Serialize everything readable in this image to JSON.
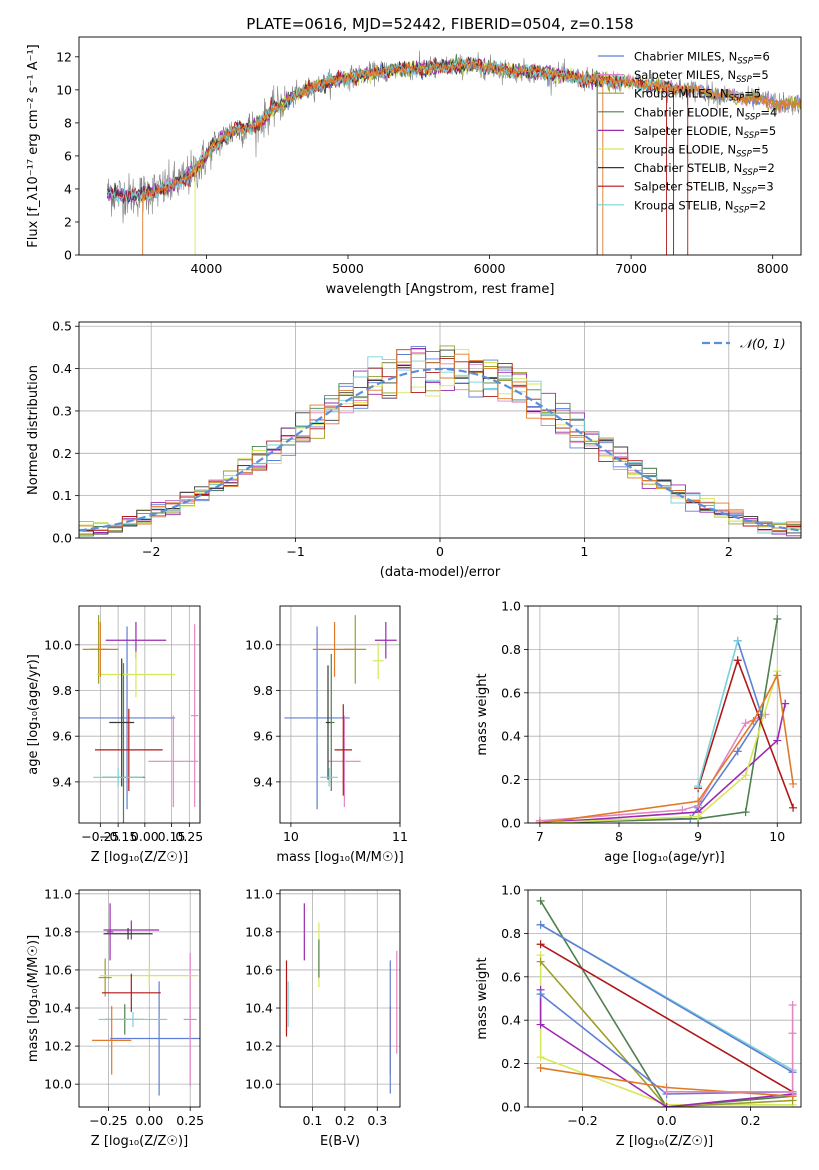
{
  "figure_title": "PLATE=0616, MJD=52442, FIBERID=0504, z=0.158",
  "colors": {
    "Chabrier MILES": "#5f7fd6",
    "Salpeter MILES": "#e286c4",
    "Kroupa MILES": "#9e9e28",
    "Chabrier ELODIE": "#4f8050",
    "Salpeter ELODIE": "#9b2ab0",
    "Kroupa ELODIE": "#d6e85a",
    "Chabrier STELIB": "#3a3a3a",
    "Salpeter STELIB": "#b01818",
    "Kroupa STELIB": "#76d2d8",
    "data": "#808080",
    "orange": "#e07a2a",
    "normal": "#5b8fd8"
  },
  "chart_data": [
    {
      "id": "spectrum",
      "type": "line",
      "xlabel": "wavelength [Angstrom, rest frame]",
      "ylabel": "Flux [f_λ10⁻¹⁷ erg cm⁻² s⁻¹ A⁻¹]",
      "xlim": [
        3100,
        8200
      ],
      "ylim": [
        0,
        13.2
      ],
      "xticks": [
        4000,
        5000,
        6000,
        7000,
        8000
      ],
      "yticks": [
        0,
        2,
        4,
        6,
        8,
        10,
        12
      ],
      "legend_loc": "right",
      "legend": [
        {
          "pre": "Chabrier MILES, N",
          "sub": "SSP",
          "post": "=6",
          "color": "#5f7fd6"
        },
        {
          "pre": "Salpeter MILES, N",
          "sub": "SSP",
          "post": "=5",
          "color": "#e286c4"
        },
        {
          "pre": "Kroupa MILES, N",
          "sub": "SSP",
          "post": "=5",
          "color": "#9e9e28"
        },
        {
          "pre": "Chabrier ELODIE, N",
          "sub": "SSP",
          "post": "=4",
          "color": "#4f8050"
        },
        {
          "pre": "Salpeter ELODIE, N",
          "sub": "SSP",
          "post": "=5",
          "color": "#9b2ab0"
        },
        {
          "pre": "Kroupa ELODIE, N",
          "sub": "SSP",
          "post": "=5",
          "color": "#d6e85a"
        },
        {
          "pre": "Chabrier STELIB, N",
          "sub": "SSP",
          "post": "=2",
          "color": "#3a3a3a"
        },
        {
          "pre": "Salpeter STELIB, N",
          "sub": "SSP",
          "post": "=3",
          "color": "#b01818"
        },
        {
          "pre": "Kroupa STELIB, N",
          "sub": "SSP",
          "post": "=2",
          "color": "#76d2d8"
        }
      ],
      "continuum": [
        [
          3300,
          3.7
        ],
        [
          3500,
          3.6
        ],
        [
          3700,
          4.0
        ],
        [
          3850,
          4.6
        ],
        [
          3950,
          5.4
        ],
        [
          4050,
          6.6
        ],
        [
          4200,
          7.6
        ],
        [
          4350,
          7.8
        ],
        [
          4500,
          9.0
        ],
        [
          4700,
          10.0
        ],
        [
          4900,
          10.6
        ],
        [
          5100,
          10.9
        ],
        [
          5300,
          11.2
        ],
        [
          5500,
          11.3
        ],
        [
          5700,
          11.4
        ],
        [
          5900,
          11.5
        ],
        [
          6100,
          11.2
        ],
        [
          6300,
          11.1
        ],
        [
          6500,
          10.9
        ],
        [
          6700,
          10.6
        ],
        [
          6900,
          10.5
        ],
        [
          7100,
          10.3
        ],
        [
          7300,
          10.1
        ],
        [
          7500,
          9.9
        ],
        [
          7700,
          9.6
        ],
        [
          7900,
          9.4
        ],
        [
          8100,
          9.1
        ]
      ]
    },
    {
      "id": "residuals",
      "type": "histogram",
      "xlabel": "(data-model)/error",
      "ylabel": "Normed distribution",
      "xlim": [
        -2.5,
        2.5
      ],
      "ylim": [
        0,
        0.51
      ],
      "xticks": [
        -2,
        -1,
        0,
        1,
        2
      ],
      "yticks": [
        0.0,
        0.1,
        0.2,
        0.3,
        0.4,
        0.5
      ],
      "legend_loc": "upper right",
      "gaussian_label": "𝒩(0, 1)",
      "bins": 50
    },
    {
      "id": "age_vs_Z",
      "type": "errorbar",
      "xlabel": "Z [log₁₀(Z/Z☉)]",
      "ylabel": "age  [log₁₀(age/yr)]",
      "xlim": [
        -0.37,
        0.31
      ],
      "ylim": [
        9.22,
        10.17
      ],
      "xticks": [
        -0.25,
        -0.15,
        0.0,
        0.15,
        0.25
      ],
      "xticklabels": [
        "−0.25",
        "−0.15",
        "0.00",
        "0.15",
        "0.25"
      ],
      "yticks": [
        9.4,
        9.6,
        9.8,
        10.0
      ],
      "points": [
        {
          "x": -0.1,
          "y": 9.68,
          "xerr": 0.27,
          "yerr": 0.4,
          "c": "#5f7fd6"
        },
        {
          "x": 0.16,
          "y": 9.49,
          "xerr": 0.14,
          "yerr": 0.2,
          "c": "#e286c4"
        },
        {
          "x": -0.26,
          "y": 9.98,
          "xerr": 0.05,
          "yerr": 0.15,
          "c": "#9e9e28"
        },
        {
          "x": -0.12,
          "y": 9.42,
          "xerr": 0.12,
          "yerr": 0.5,
          "c": "#4f8050"
        },
        {
          "x": -0.05,
          "y": 10.02,
          "xerr": 0.17,
          "yerr": 0.08,
          "c": "#9b2ab0"
        },
        {
          "x": -0.05,
          "y": 9.87,
          "xerr": 0.22,
          "yerr": 0.1,
          "c": "#d6e85a"
        },
        {
          "x": -0.13,
          "y": 9.66,
          "xerr": 0.07,
          "yerr": 0.28,
          "c": "#3a3a3a"
        },
        {
          "x": -0.09,
          "y": 9.54,
          "xerr": 0.19,
          "yerr": 0.18,
          "c": "#b01818"
        },
        {
          "x": -0.15,
          "y": 9.42,
          "xerr": 0.14,
          "yerr": 0.04,
          "c": "#76d2d8"
        },
        {
          "x": -0.25,
          "y": 9.98,
          "xerr": 0.1,
          "yerr": 0.12,
          "c": "#e07a2a"
        },
        {
          "x": 0.28,
          "y": 9.69,
          "xerr": 0.02,
          "yerr": 0.4,
          "c": "#e286c4"
        }
      ]
    },
    {
      "id": "age_vs_mass",
      "type": "errorbar",
      "xlabel": "mass [log₁₀(M/M☉)]",
      "ylabel": "",
      "xlim": [
        9.9,
        11.0
      ],
      "ylim": [
        9.22,
        10.17
      ],
      "xticks": [
        10,
        11
      ],
      "yticks": [
        9.4,
        9.6,
        9.8,
        10.0
      ],
      "points": [
        {
          "x": 10.24,
          "y": 9.68,
          "xerr": 0.3,
          "yerr": 0.4,
          "c": "#5f7fd6"
        },
        {
          "x": 10.49,
          "y": 9.49,
          "xerr": 0.15,
          "yerr": 0.2,
          "c": "#e286c4"
        },
        {
          "x": 10.59,
          "y": 9.98,
          "xerr": 0.1,
          "yerr": 0.15,
          "c": "#9e9e28"
        },
        {
          "x": 10.37,
          "y": 9.66,
          "xerr": 0.03,
          "yerr": 0.3,
          "c": "#4f8050"
        },
        {
          "x": 10.87,
          "y": 10.02,
          "xerr": 0.1,
          "yerr": 0.08,
          "c": "#9b2ab0"
        },
        {
          "x": 10.8,
          "y": 9.93,
          "xerr": 0.05,
          "yerr": 0.08,
          "c": "#d6e85a"
        },
        {
          "x": 10.34,
          "y": 9.66,
          "xerr": 0.02,
          "yerr": 0.25,
          "c": "#3a3a3a"
        },
        {
          "x": 10.48,
          "y": 9.54,
          "xerr": 0.08,
          "yerr": 0.2,
          "c": "#b01818"
        },
        {
          "x": 10.35,
          "y": 9.42,
          "xerr": 0.08,
          "yerr": 0.04,
          "c": "#76d2d8"
        },
        {
          "x": 10.4,
          "y": 9.98,
          "xerr": 0.2,
          "yerr": 0.12,
          "c": "#e07a2a"
        }
      ]
    },
    {
      "id": "weight_vs_age",
      "type": "line",
      "xlabel": "age  [log₁₀(age/yr)]",
      "ylabel": "mass weight",
      "xlim": [
        6.85,
        10.3
      ],
      "ylim": [
        0,
        1.0
      ],
      "xticks": [
        7,
        8,
        9,
        10
      ],
      "yticks": [
        0.0,
        0.2,
        0.4,
        0.6,
        0.8,
        1.0
      ],
      "series": [
        {
          "c": "#5f7fd6",
          "pts": [
            [
              7.0,
              0.01
            ],
            [
              8.9,
              0.02
            ],
            [
              9.0,
              0.07
            ],
            [
              9.5,
              0.33
            ],
            [
              9.8,
              0.5
            ],
            [
              9.5,
              0.84
            ]
          ]
        },
        {
          "c": "#e286c4",
          "pts": [
            [
              7.0,
              0.01
            ],
            [
              8.8,
              0.06
            ],
            [
              9.0,
              0.08
            ],
            [
              9.6,
              0.46
            ],
            [
              9.85,
              0.5
            ]
          ]
        },
        {
          "c": "#4f8050",
          "pts": [
            [
              7.0,
              0.0
            ],
            [
              9.0,
              0.02
            ],
            [
              9.6,
              0.05
            ],
            [
              10.0,
              0.94
            ]
          ]
        },
        {
          "c": "#9b2ab0",
          "pts": [
            [
              7.0,
              0.0
            ],
            [
              9.0,
              0.05
            ],
            [
              10.0,
              0.38
            ],
            [
              10.1,
              0.55
            ]
          ]
        },
        {
          "c": "#d6e85a",
          "pts": [
            [
              7.0,
              0.0
            ],
            [
              9.0,
              0.03
            ],
            [
              9.6,
              0.22
            ],
            [
              10.0,
              0.7
            ]
          ]
        },
        {
          "c": "#b01818",
          "pts": [
            [
              9.0,
              0.16
            ],
            [
              9.5,
              0.75
            ],
            [
              10.2,
              0.07
            ]
          ]
        },
        {
          "c": "#76d2d8",
          "pts": [
            [
              9.0,
              0.17
            ],
            [
              9.5,
              0.84
            ]
          ]
        },
        {
          "c": "#e07a2a",
          "pts": [
            [
              7.0,
              0.0
            ],
            [
              9.0,
              0.1
            ],
            [
              9.7,
              0.47
            ],
            [
              10.0,
              0.68
            ],
            [
              10.2,
              0.18
            ]
          ]
        }
      ]
    },
    {
      "id": "mass_vs_Z",
      "type": "errorbar",
      "xlabel": "Z [log₁₀(Z/Z☉)]",
      "ylabel": "mass [log₁₀(M/M☉)]",
      "xlim": [
        -0.43,
        0.31
      ],
      "ylim": [
        9.88,
        11.02
      ],
      "xticks": [
        -0.25,
        0.0,
        0.25
      ],
      "xticklabels": [
        "−0.25",
        "0.00",
        "0.25"
      ],
      "yticks": [
        10.0,
        10.2,
        10.4,
        10.6,
        10.8,
        11.0
      ],
      "points": [
        {
          "x": 0.06,
          "y": 10.24,
          "xerr": 0.3,
          "yerr": 0.3,
          "c": "#5f7fd6"
        },
        {
          "x": 0.25,
          "y": 10.34,
          "xerr": 0.04,
          "yerr": 0.35,
          "c": "#e286c4"
        },
        {
          "x": -0.27,
          "y": 10.56,
          "xerr": 0.04,
          "yerr": 0.1,
          "c": "#9e9e28"
        },
        {
          "x": -0.15,
          "y": 10.34,
          "xerr": 0.12,
          "yerr": 0.08,
          "c": "#4f8050"
        },
        {
          "x": -0.11,
          "y": 10.81,
          "xerr": 0.17,
          "yerr": 0.05,
          "c": "#9b2ab0"
        },
        {
          "x": 0.0,
          "y": 10.57,
          "xerr": 0.3,
          "yerr": 0.06,
          "c": "#d6e85a"
        },
        {
          "x": -0.13,
          "y": 10.79,
          "xerr": 0.15,
          "yerr": 0.03,
          "c": "#3a3a3a"
        },
        {
          "x": -0.11,
          "y": 10.48,
          "xerr": 0.18,
          "yerr": 0.1,
          "c": "#b01818"
        },
        {
          "x": -0.1,
          "y": 10.34,
          "xerr": 0.21,
          "yerr": 0.04,
          "c": "#76d2d8"
        },
        {
          "x": -0.23,
          "y": 10.23,
          "xerr": 0.12,
          "yerr": 0.18,
          "c": "#e07a2a"
        },
        {
          "x": -0.24,
          "y": 10.8,
          "xerr": 0.02,
          "yerr": 0.15,
          "c": "#9b2ab0"
        }
      ]
    },
    {
      "id": "mass_vs_EBV",
      "type": "errorbar",
      "xlabel": "E(B-V)",
      "ylabel": "",
      "xlim": [
        0.0,
        0.37
      ],
      "ylim": [
        9.88,
        11.02
      ],
      "xticks": [
        0.1,
        0.2,
        0.3
      ],
      "yticks": [
        10.0,
        10.2,
        10.4,
        10.6,
        10.8,
        11.0
      ],
      "points": [
        {
          "x": 0.02,
          "y": 10.45,
          "xerr": 0.0,
          "yerr": 0.2,
          "c": "#b01818"
        },
        {
          "x": 0.025,
          "y": 10.42,
          "xerr": 0.0,
          "yerr": 0.12,
          "c": "#76d2d8"
        },
        {
          "x": 0.075,
          "y": 10.8,
          "xerr": 0.0,
          "yerr": 0.15,
          "c": "#9b2ab0"
        },
        {
          "x": 0.12,
          "y": 10.68,
          "xerr": 0.0,
          "yerr": 0.17,
          "c": "#d6e85a"
        },
        {
          "x": 0.12,
          "y": 10.66,
          "xerr": 0.0,
          "yerr": 0.1,
          "c": "#4f8050"
        },
        {
          "x": 0.34,
          "y": 10.23,
          "xerr": 0.0,
          "yerr": 0.18,
          "c": "#e07a2a"
        },
        {
          "x": 0.34,
          "y": 10.3,
          "xerr": 0.0,
          "yerr": 0.35,
          "c": "#5f7fd6"
        },
        {
          "x": 0.36,
          "y": 10.43,
          "xerr": 0.0,
          "yerr": 0.27,
          "c": "#e286c4"
        }
      ]
    },
    {
      "id": "weight_vs_Z",
      "type": "line",
      "xlabel": "Z [log₁₀(Z/Z☉)]",
      "ylabel": "mass weight",
      "xlim": [
        -0.33,
        0.32
      ],
      "ylim": [
        0,
        1.0
      ],
      "xticks": [
        -0.2,
        0.0,
        0.2
      ],
      "xticklabels": [
        "−0.2",
        "0.0",
        "0.2"
      ],
      "yticks": [
        0.0,
        0.2,
        0.4,
        0.6,
        0.8,
        1.0
      ],
      "series": [
        {
          "c": "#4f8050",
          "pts": [
            [
              -0.3,
              0.95
            ],
            [
              0.0,
              0.0
            ],
            [
              0.3,
              0.05
            ]
          ]
        },
        {
          "c": "#76d2d8",
          "pts": [
            [
              -0.3,
              0.84
            ],
            [
              0.3,
              0.17
            ]
          ]
        },
        {
          "c": "#5f7fd6",
          "pts": [
            [
              -0.3,
              0.84
            ],
            [
              0.3,
              0.16
            ]
          ]
        },
        {
          "c": "#b01818",
          "pts": [
            [
              -0.3,
              0.75
            ],
            [
              0.3,
              0.07
            ]
          ]
        },
        {
          "c": "#d6e85a",
          "pts": [
            [
              -0.3,
              0.7
            ],
            [
              -0.3,
              0.23
            ],
            [
              0.0,
              0.01
            ],
            [
              0.3,
              0.01
            ]
          ]
        },
        {
          "c": "#9e9e28",
          "pts": [
            [
              -0.3,
              0.67
            ],
            [
              0.0,
              0.0
            ],
            [
              0.3,
              0.03
            ]
          ]
        },
        {
          "c": "#9b2ab0",
          "pts": [
            [
              -0.3,
              0.54
            ],
            [
              -0.3,
              0.38
            ],
            [
              0.0,
              0.0
            ],
            [
              0.3,
              0.06
            ]
          ]
        },
        {
          "c": "#5f7fd6",
          "pts": [
            [
              -0.3,
              0.52
            ],
            [
              0.0,
              0.06
            ],
            [
              0.3,
              0.07
            ]
          ]
        },
        {
          "c": "#e07a2a",
          "pts": [
            [
              -0.3,
              0.18
            ],
            [
              0.0,
              0.09
            ],
            [
              0.3,
              0.05
            ]
          ]
        },
        {
          "c": "#e286c4",
          "pts": [
            [
              0.0,
              0.07
            ],
            [
              0.3,
              0.07
            ],
            [
              0.3,
              0.47
            ],
            [
              0.3,
              0.34
            ]
          ]
        }
      ]
    }
  ]
}
